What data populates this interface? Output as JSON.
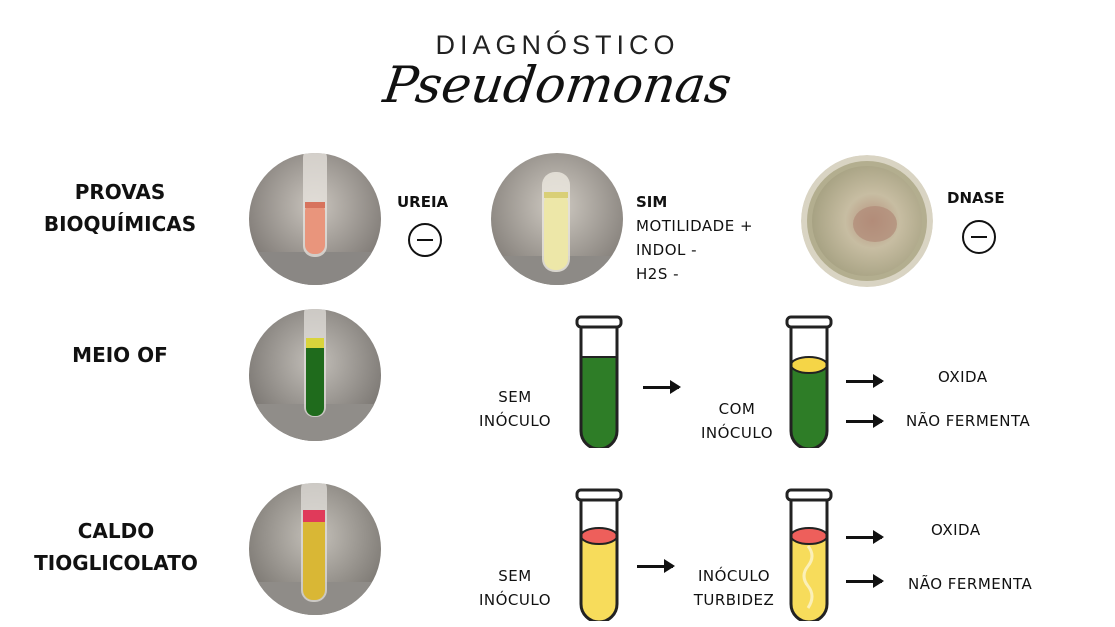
{
  "title": {
    "line1": "DIAGNÓSTICO",
    "line2": "Pseudomonas"
  },
  "rows": {
    "provas": {
      "label_line1": "PROVAS",
      "label_line2": "BIOQUÍMICAS",
      "ureia": {
        "label": "UREIA",
        "result": "negative"
      },
      "sim": {
        "label": "SIM",
        "lines": [
          "MOTILIDADE +",
          "INDOL -",
          "H2S -"
        ]
      },
      "dnase": {
        "label": "DNASE",
        "result": "negative"
      }
    },
    "meio_of": {
      "label": "MEIO OF",
      "sem_line1": "SEM",
      "sem_line2": "INÓCULO",
      "com_line1": "COM",
      "com_line2": "INÓCULO",
      "result1": "OXIDA",
      "result2": "NÃO FERMENTA",
      "colors": {
        "medium": "#2e7d27",
        "top_layer": "#f5d547"
      }
    },
    "caldo": {
      "label_line1": "CALDO",
      "label_line2": "TIOGLICOLATO",
      "sem_line1": "SEM",
      "sem_line2": "INÓCULO",
      "ino_line1": "INÓCULO",
      "ino_line2": "TURBIDEZ",
      "result1": "OXIDA",
      "result2": "NÃO FERMENTA",
      "colors": {
        "medium": "#f7dc5b",
        "top_layer": "#ee5f5b"
      }
    }
  },
  "icons": {
    "negative": "minus-circle-icon",
    "arrow": "arrow-right-icon"
  }
}
